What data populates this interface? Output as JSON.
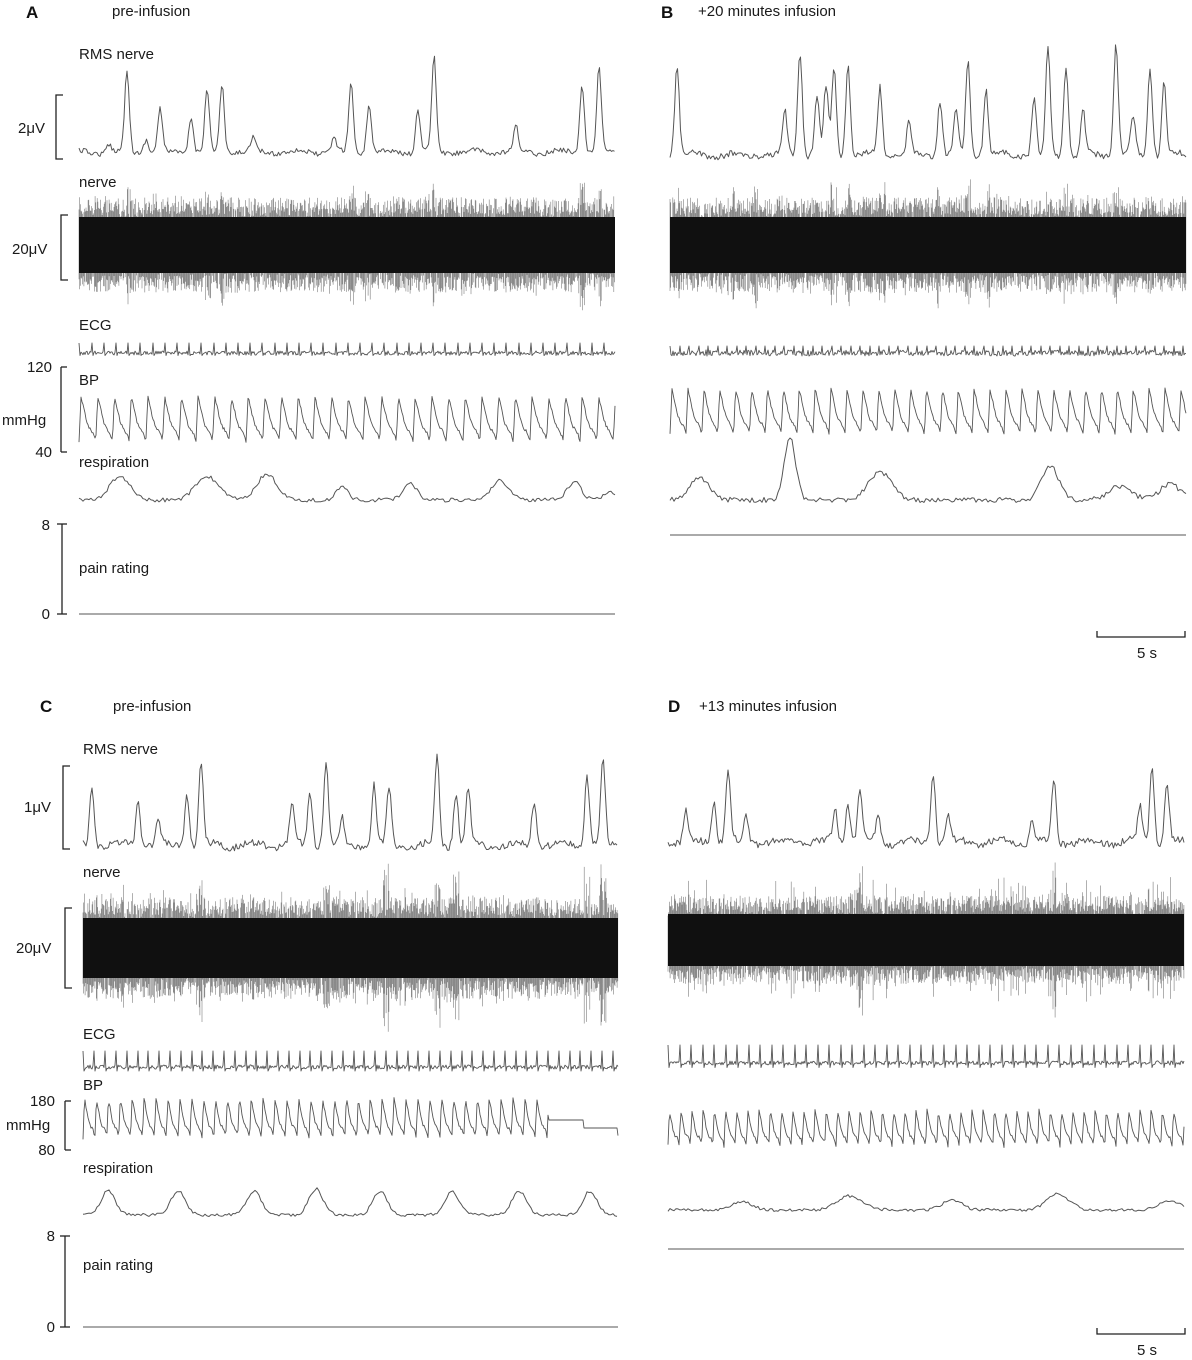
{
  "figure": {
    "scale_bar_label": "5 s",
    "trace_color": "#555555",
    "nerve_color": "#111111"
  },
  "chart_data": [
    {
      "type": "line",
      "panel": "A",
      "title": "pre-infusion",
      "traces": [
        {
          "name": "RMS nerve",
          "scale_label": "2μV"
        },
        {
          "name": "nerve",
          "scale_label": "20μV"
        },
        {
          "name": "ECG"
        },
        {
          "name": "BP",
          "ytick_labels": [
            "120",
            "40"
          ],
          "unit": "mmHg",
          "ylim": [
            40,
            120
          ]
        },
        {
          "name": "respiration"
        },
        {
          "name": "pain rating",
          "ytick_labels": [
            "8",
            "0"
          ],
          "ylim": [
            0,
            8
          ],
          "values": [
            0,
            0
          ]
        }
      ]
    },
    {
      "type": "line",
      "panel": "B",
      "title": "+20 minutes infusion",
      "traces": [
        {
          "name": "RMS nerve"
        },
        {
          "name": "nerve"
        },
        {
          "name": "ECG"
        },
        {
          "name": "BP"
        },
        {
          "name": "respiration"
        },
        {
          "name": "pain rating",
          "values": [
            0,
            0
          ]
        }
      ],
      "scale_bar": "5 s"
    },
    {
      "type": "line",
      "panel": "C",
      "title": "pre-infusion",
      "traces": [
        {
          "name": "RMS nerve",
          "scale_label": "1μV"
        },
        {
          "name": "nerve",
          "scale_label": "20μV"
        },
        {
          "name": "ECG"
        },
        {
          "name": "BP",
          "ytick_labels": [
            "180",
            "80"
          ],
          "unit": "mmHg",
          "ylim": [
            80,
            180
          ]
        },
        {
          "name": "respiration"
        },
        {
          "name": "pain rating",
          "ytick_labels": [
            "8",
            "0"
          ],
          "ylim": [
            0,
            8
          ],
          "values": [
            0,
            0
          ]
        }
      ]
    },
    {
      "type": "line",
      "panel": "D",
      "title": "+13 minutes infusion",
      "traces": [
        {
          "name": "RMS nerve"
        },
        {
          "name": "nerve"
        },
        {
          "name": "ECG"
        },
        {
          "name": "BP"
        },
        {
          "name": "respiration"
        },
        {
          "name": "pain rating",
          "values": [
            0,
            0
          ]
        }
      ],
      "scale_bar": "5 s"
    }
  ]
}
